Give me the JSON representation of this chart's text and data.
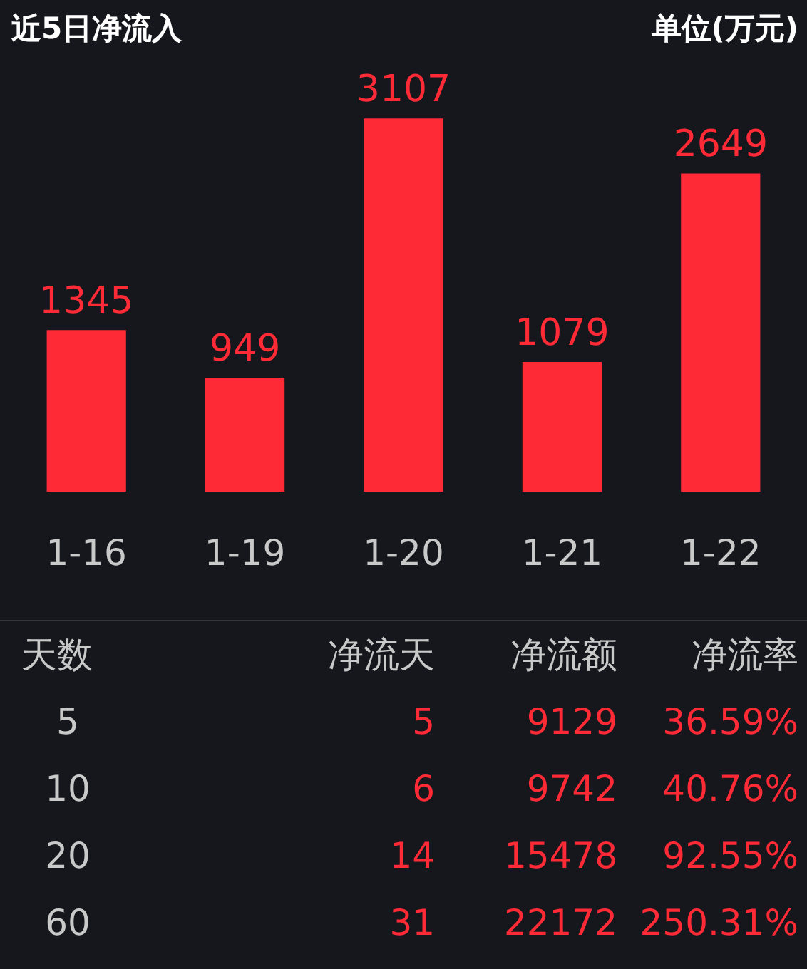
{
  "chart_data": [
    {
      "type": "bar",
      "title": "近5日净流入",
      "subtitle": "单位(万元)",
      "categories": [
        "1-16",
        "1-19",
        "1-20",
        "1-21",
        "1-22"
      ],
      "values": [
        1345,
        949,
        3107,
        1079,
        2649
      ],
      "color": "#fe2b37",
      "tick_labels": "x",
      "data_labels": true,
      "grid": false,
      "legend": false
    },
    {
      "type": "other",
      "categories": [
        "天数",
        "净流天",
        "净流额",
        "净流率"
      ],
      "colors": [
        "#c9c9c9",
        "#fe2b37",
        "#fe2b37",
        "#fe2b37"
      ],
      "cell_labels": [
        [
          "5",
          "5",
          "9129",
          "36.59%"
        ],
        [
          "10",
          "6",
          "9742",
          "40.76%"
        ],
        [
          "20",
          "14",
          "15478",
          "92.55%"
        ],
        [
          "60",
          "31",
          "22172",
          "250.31%"
        ]
      ]
    }
  ]
}
